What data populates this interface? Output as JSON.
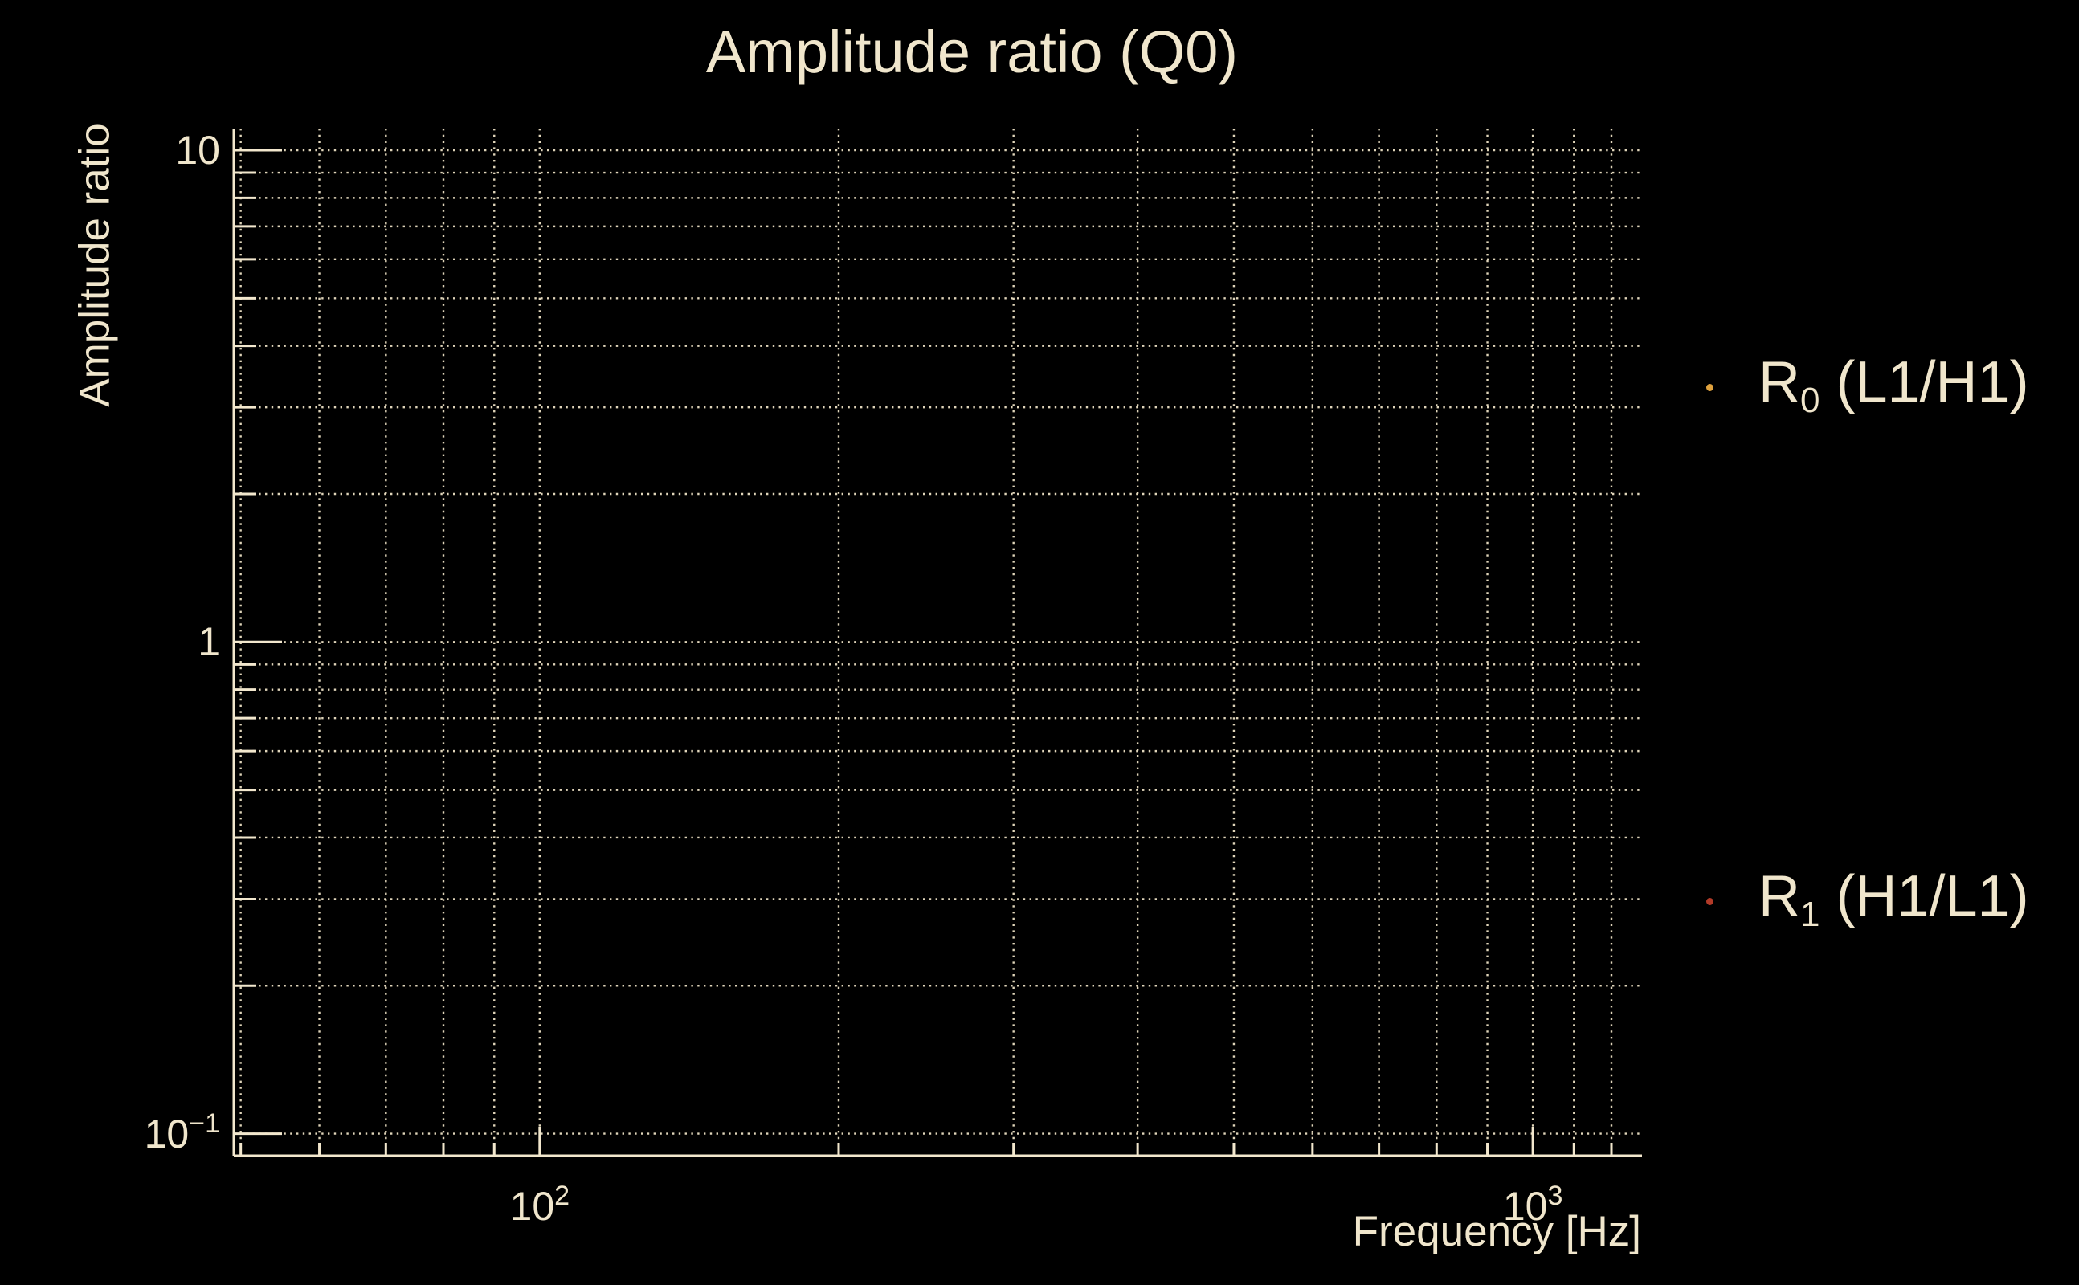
{
  "colors": {
    "background": "#000000",
    "foreground": "#f0e6cc",
    "grid": "#ece0c4",
    "spine": "#f2e7cd",
    "r0_marker": "#dfa23e",
    "r1_marker": "#b23a28"
  },
  "chart_data": {
    "type": "scatter",
    "title": "Amplitude ratio (Q0)",
    "xlabel": "Frequency [Hz]",
    "ylabel": "Amplitude ratio",
    "x_scale": "log",
    "y_scale": "log",
    "xlim": [
      49.2,
      1288
    ],
    "ylim": [
      0.0902,
      11.07
    ],
    "grid": "major and minor, dotted",
    "legend_position": "outside-right",
    "series": [
      {
        "name": "R0 (L1/H1)",
        "marker_color": "#dfa23e",
        "points": []
      },
      {
        "name": "R1 (H1/L1)",
        "marker_color": "#b23a28",
        "points": []
      }
    ]
  },
  "axes": {
    "x": {
      "ticks": [
        {
          "value": 100,
          "base": "10",
          "exp": "2"
        },
        {
          "value": 1000,
          "base": "10",
          "exp": "3"
        }
      ],
      "minor_ticks": [
        50,
        60,
        70,
        80,
        90,
        200,
        300,
        400,
        500,
        600,
        700,
        800,
        900,
        1100,
        1200
      ]
    },
    "y": {
      "ticks": [
        {
          "value": 10,
          "base": "10",
          "exp": ""
        },
        {
          "value": 1,
          "base": "1",
          "exp": ""
        },
        {
          "value": 0.1,
          "base": "10",
          "exp": "−1"
        }
      ],
      "minor_ticks": [
        9,
        8,
        7,
        6,
        5,
        4,
        3,
        2,
        0.9,
        0.8,
        0.7,
        0.6,
        0.5,
        0.4,
        0.3,
        0.2
      ]
    }
  },
  "legend": {
    "entries": [
      {
        "main": "R",
        "sub": "0",
        "rest": " (L1/H1)",
        "color": "#dfa23e"
      },
      {
        "main": "R",
        "sub": "1",
        "rest": " (H1/L1)",
        "color": "#b23a28"
      }
    ]
  }
}
